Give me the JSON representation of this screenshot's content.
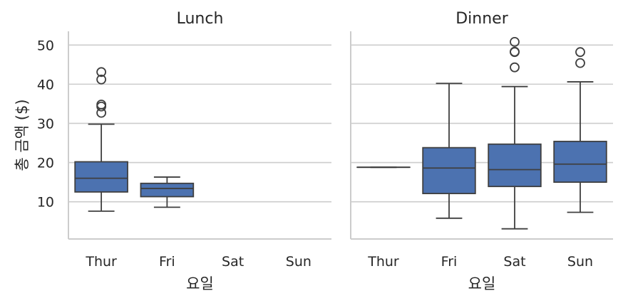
{
  "chart_data": {
    "type": "box",
    "ylabel": "총 금액 ($)",
    "ylim": [
      0.5,
      53.5
    ],
    "yticks": [
      10,
      20,
      30,
      40,
      50
    ],
    "grid": "horizontal",
    "box_color": "#4c72b0",
    "panels": [
      {
        "title": "Lunch",
        "xlabel": "요일",
        "categories": [
          "Thur",
          "Fri",
          "Sat",
          "Sun"
        ],
        "boxes": [
          {
            "category": "Thur",
            "whisker_low": 7.6,
            "q1": 12.5,
            "median": 16.0,
            "q3": 20.2,
            "whisker_high": 29.8,
            "outliers": [
              32.7,
              34.3,
              34.8,
              41.2,
              43.1
            ]
          },
          {
            "category": "Fri",
            "whisker_low": 8.6,
            "q1": 11.3,
            "median": 13.4,
            "q3": 14.7,
            "whisker_high": 16.3,
            "outliers": []
          },
          null,
          null
        ]
      },
      {
        "title": "Dinner",
        "xlabel": "요일",
        "categories": [
          "Thur",
          "Fri",
          "Sat",
          "Sun"
        ],
        "boxes": [
          {
            "category": "Thur",
            "whisker_low": 18.8,
            "q1": 18.8,
            "median": 18.8,
            "q3": 18.8,
            "whisker_high": 18.8,
            "outliers": []
          },
          {
            "category": "Fri",
            "whisker_low": 5.8,
            "q1": 12.1,
            "median": 18.6,
            "q3": 23.8,
            "whisker_high": 40.2,
            "outliers": []
          },
          {
            "category": "Sat",
            "whisker_low": 3.1,
            "q1": 13.9,
            "median": 18.2,
            "q3": 24.7,
            "whisker_high": 39.4,
            "outliers": [
              44.3,
              48.2,
              48.3,
              50.8
            ]
          },
          {
            "category": "Sun",
            "whisker_low": 7.3,
            "q1": 15.0,
            "median": 19.6,
            "q3": 25.4,
            "whisker_high": 40.6,
            "outliers": [
              45.4,
              48.2
            ]
          }
        ]
      }
    ]
  }
}
